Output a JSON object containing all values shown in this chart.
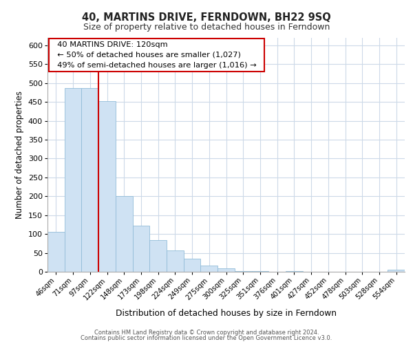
{
  "title": "40, MARTINS DRIVE, FERNDOWN, BH22 9SQ",
  "subtitle": "Size of property relative to detached houses in Ferndown",
  "xlabel": "Distribution of detached houses by size in Ferndown",
  "ylabel": "Number of detached properties",
  "bar_labels": [
    "46sqm",
    "71sqm",
    "97sqm",
    "122sqm",
    "148sqm",
    "173sqm",
    "198sqm",
    "224sqm",
    "249sqm",
    "275sqm",
    "300sqm",
    "325sqm",
    "351sqm",
    "376sqm",
    "401sqm",
    "427sqm",
    "452sqm",
    "478sqm",
    "503sqm",
    "528sqm",
    "554sqm"
  ],
  "bar_values": [
    105,
    487,
    487,
    452,
    200,
    122,
    83,
    57,
    35,
    17,
    10,
    2,
    2,
    0,
    2,
    0,
    0,
    0,
    0,
    0,
    5
  ],
  "bar_color": "#cfe2f3",
  "bar_edge_color": "#91bcd8",
  "vline_index": 2.5,
  "vline_color": "#cc0000",
  "annotation_title": "40 MARTINS DRIVE: 120sqm",
  "annotation_line1": "← 50% of detached houses are smaller (1,027)",
  "annotation_line2": "49% of semi-detached houses are larger (1,016) →",
  "annotation_box_color": "#ffffff",
  "annotation_box_edge": "#cc0000",
  "ylim": [
    0,
    620
  ],
  "yticks": [
    0,
    50,
    100,
    150,
    200,
    250,
    300,
    350,
    400,
    450,
    500,
    550,
    600
  ],
  "footer_line1": "Contains HM Land Registry data © Crown copyright and database right 2024.",
  "footer_line2": "Contains public sector information licensed under the Open Government Licence v3.0.",
  "background_color": "#ffffff",
  "grid_color": "#ccd9e8"
}
